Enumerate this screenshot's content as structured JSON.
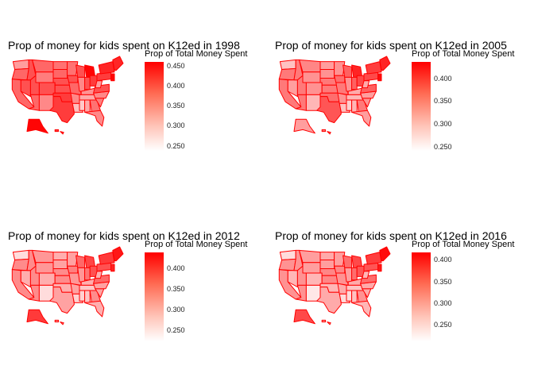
{
  "panels": [
    {
      "title": "Prop of money for kids spent on K12ed in 1998",
      "legend_title": "Prop of Total Money Spent",
      "ticks": [
        "0.450",
        "0.400",
        "0.350",
        "0.300",
        "0.250"
      ],
      "tick_values": [
        0.45,
        0.4,
        0.35,
        0.3,
        0.25
      ],
      "scale": [
        0.22,
        0.455
      ]
    },
    {
      "title": "Prop of money for kids spent on K12ed in 2005",
      "legend_title": "Prop of Total Money Spent",
      "ticks": [
        "0.400",
        "0.350",
        "0.300",
        "0.250"
      ],
      "tick_values": [
        0.4,
        0.35,
        0.3,
        0.25
      ],
      "scale": [
        0.22,
        0.43
      ]
    },
    {
      "title": "Prop of money for kids spent on K12ed in 2012",
      "legend_title": "Prop of Total Money Spent",
      "ticks": [
        "0.400",
        "0.350",
        "0.300",
        "0.250"
      ],
      "tick_values": [
        0.4,
        0.35,
        0.3,
        0.25
      ],
      "scale": [
        0.21,
        0.43
      ]
    },
    {
      "title": "Prop of money for kids spent on K12ed in 2016",
      "legend_title": "Prop of Total Money Spent",
      "ticks": [
        "0.400",
        "0.350",
        "0.300",
        "0.250"
      ],
      "tick_values": [
        0.4,
        0.35,
        0.3,
        0.25
      ],
      "scale": [
        0.21,
        0.42
      ]
    }
  ],
  "colors": {
    "border": "#ff0000",
    "high": "#ff0000",
    "low": "#ffffff",
    "background": "#ffffff"
  }
}
